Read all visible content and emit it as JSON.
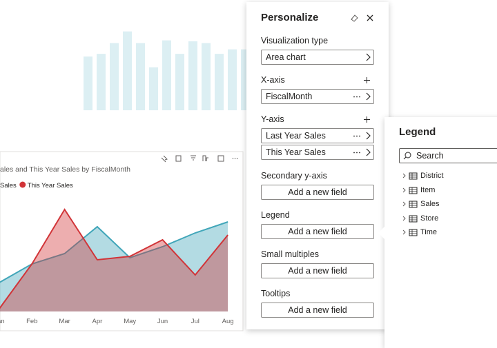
{
  "background_chart": {
    "values": [
      60,
      63,
      75,
      88,
      75,
      48,
      78,
      63,
      77,
      75,
      63,
      68,
      68
    ],
    "ylim": [
      0,
      100
    ]
  },
  "chart_data": {
    "type": "area",
    "title": "ales and This Year Sales by FiscalMonth",
    "categories": [
      "Jan",
      "Feb",
      "Mar",
      "Apr",
      "May",
      "Jun",
      "Jul",
      "Aug"
    ],
    "series": [
      {
        "name": "Sales",
        "color": "#41a6b9",
        "values": [
          21,
          34.5,
          42,
          61.5,
          39,
          47,
          57,
          65
        ]
      },
      {
        "name": "This Year Sales",
        "color": "#d13438",
        "values": [
          2,
          34.5,
          74,
          37.5,
          40,
          52,
          26.5,
          55.5
        ]
      }
    ],
    "ylim": [
      0,
      100
    ]
  },
  "personalize": {
    "title": "Personalize",
    "sections": [
      {
        "label": "Visualization type",
        "fields": [
          "Area chart"
        ]
      },
      {
        "label": "X-axis",
        "fields": [
          "FiscalMonth"
        ]
      },
      {
        "label": "Y-axis",
        "fields": [
          "Last Year Sales",
          "This Year Sales"
        ]
      },
      {
        "label": "Secondary y-axis",
        "button": "Add a new field"
      },
      {
        "label": "Legend",
        "button": "Add a new field"
      },
      {
        "label": "Small multiples",
        "button": "Add a new field"
      },
      {
        "label": "Tooltips",
        "button": "Add a new field"
      }
    ]
  },
  "legend_flyout": {
    "title": "Legend",
    "search_placeholder": "Search",
    "items": [
      "District",
      "Item",
      "Sales",
      "Store",
      "Time"
    ]
  }
}
